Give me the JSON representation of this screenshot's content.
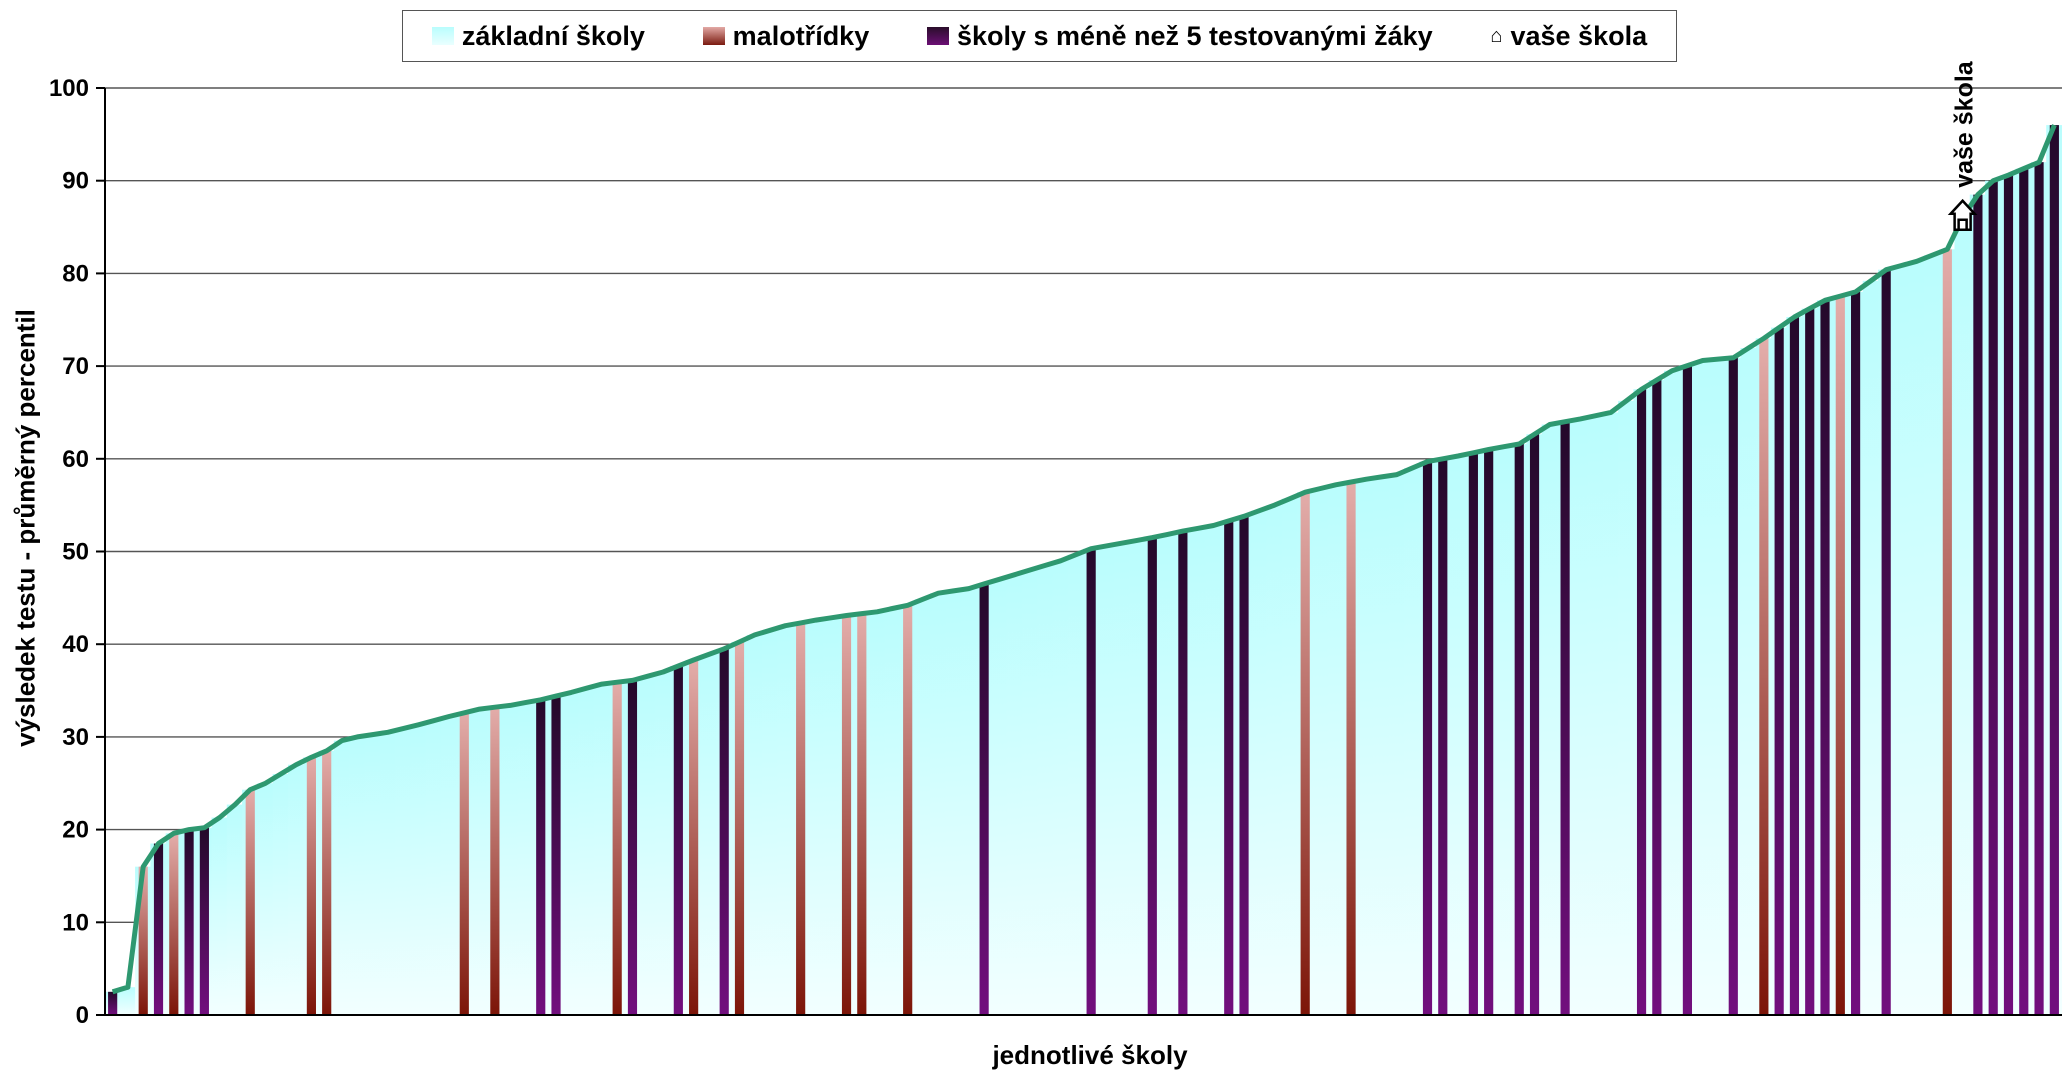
{
  "chart_data": {
    "type": "bar",
    "title": "",
    "xlabel": "jednotlivé školy",
    "ylabel": "výsledek testu - průměrný percentil",
    "ylim": [
      0,
      100
    ],
    "yticks": [
      0,
      10,
      20,
      30,
      40,
      50,
      60,
      70,
      80,
      90,
      100
    ],
    "grid": true,
    "legend_position": "top",
    "legend": [
      {
        "name": "základní školy",
        "color": "#c6fdfd"
      },
      {
        "name": "malotřídky",
        "color": "#c98a86"
      },
      {
        "name": "školy s méně než 5 testovanými žáky",
        "color": "#4a0c52"
      },
      {
        "name": "vaše škola",
        "icon": "house-icon"
      }
    ],
    "marker_label": "vaše škola",
    "marker_value": 86,
    "breakpoints": [
      [
        0,
        2.5
      ],
      [
        1,
        3
      ],
      [
        2,
        16
      ],
      [
        3,
        18.5
      ],
      [
        4,
        19.6
      ],
      [
        5,
        20
      ],
      [
        6,
        20.2
      ],
      [
        7,
        21.3
      ],
      [
        8,
        22.7
      ],
      [
        9,
        24.3
      ],
      [
        10,
        25
      ],
      [
        11,
        26
      ],
      [
        12,
        27
      ],
      [
        13,
        27.8
      ],
      [
        14,
        28.5
      ],
      [
        15,
        29.6
      ],
      [
        16,
        30
      ],
      [
        18,
        30.5
      ],
      [
        20,
        31.3
      ],
      [
        22,
        32.2
      ],
      [
        24,
        33
      ],
      [
        26,
        33.4
      ],
      [
        28,
        34
      ],
      [
        30,
        34.8
      ],
      [
        32,
        35.7
      ],
      [
        34,
        36.1
      ],
      [
        36,
        37
      ],
      [
        38,
        38.3
      ],
      [
        40,
        39.5
      ],
      [
        42,
        41
      ],
      [
        44,
        42
      ],
      [
        46,
        42.6
      ],
      [
        48,
        43.1
      ],
      [
        50,
        43.5
      ],
      [
        52,
        44.2
      ],
      [
        54,
        45.5
      ],
      [
        56,
        46
      ],
      [
        58,
        47
      ],
      [
        60,
        48
      ],
      [
        62,
        49
      ],
      [
        64,
        50.3
      ],
      [
        66,
        50.9
      ],
      [
        68,
        51.5
      ],
      [
        70,
        52.2
      ],
      [
        72,
        52.8
      ],
      [
        74,
        53.8
      ],
      [
        76,
        55
      ],
      [
        78,
        56.4
      ],
      [
        80,
        57.2
      ],
      [
        82,
        57.8
      ],
      [
        84,
        58.3
      ],
      [
        86,
        59.7
      ],
      [
        88,
        60.3
      ],
      [
        90,
        61
      ],
      [
        92,
        61.6
      ],
      [
        94,
        63.7
      ],
      [
        96,
        64.3
      ],
      [
        98,
        65
      ],
      [
        100,
        67.5
      ],
      [
        102,
        69.5
      ],
      [
        104,
        70.6
      ],
      [
        106,
        70.9
      ],
      [
        108,
        73
      ],
      [
        110,
        75.3
      ],
      [
        112,
        77.1
      ],
      [
        114,
        78
      ],
      [
        116,
        80.4
      ],
      [
        118,
        81.3
      ],
      [
        120,
        82.6
      ],
      [
        121,
        86
      ],
      [
        122,
        88.5
      ],
      [
        123,
        90
      ],
      [
        124,
        90.6
      ],
      [
        125,
        91.3
      ],
      [
        126,
        92
      ],
      [
        127,
        96
      ]
    ],
    "series": [
      {
        "name": "základní školy",
        "indices": "all others"
      },
      {
        "name": "malotřídky",
        "indices": [
          2,
          4,
          9,
          13,
          14,
          23,
          25,
          33,
          38,
          41,
          45,
          48,
          49,
          52,
          78,
          81,
          108,
          113,
          120
        ]
      },
      {
        "name": "školy s méně než 5 testovanými žáky",
        "indices": [
          0,
          3,
          5,
          6,
          28,
          29,
          34,
          37,
          40,
          57,
          64,
          68,
          70,
          73,
          74,
          86,
          87,
          89,
          90,
          92,
          93,
          95,
          100,
          101,
          103,
          106,
          109,
          110,
          111,
          112,
          114,
          116,
          122,
          123,
          124,
          125,
          126,
          127
        ]
      },
      {
        "name": "vaše škola",
        "indices": [
          121
        ]
      }
    ]
  }
}
